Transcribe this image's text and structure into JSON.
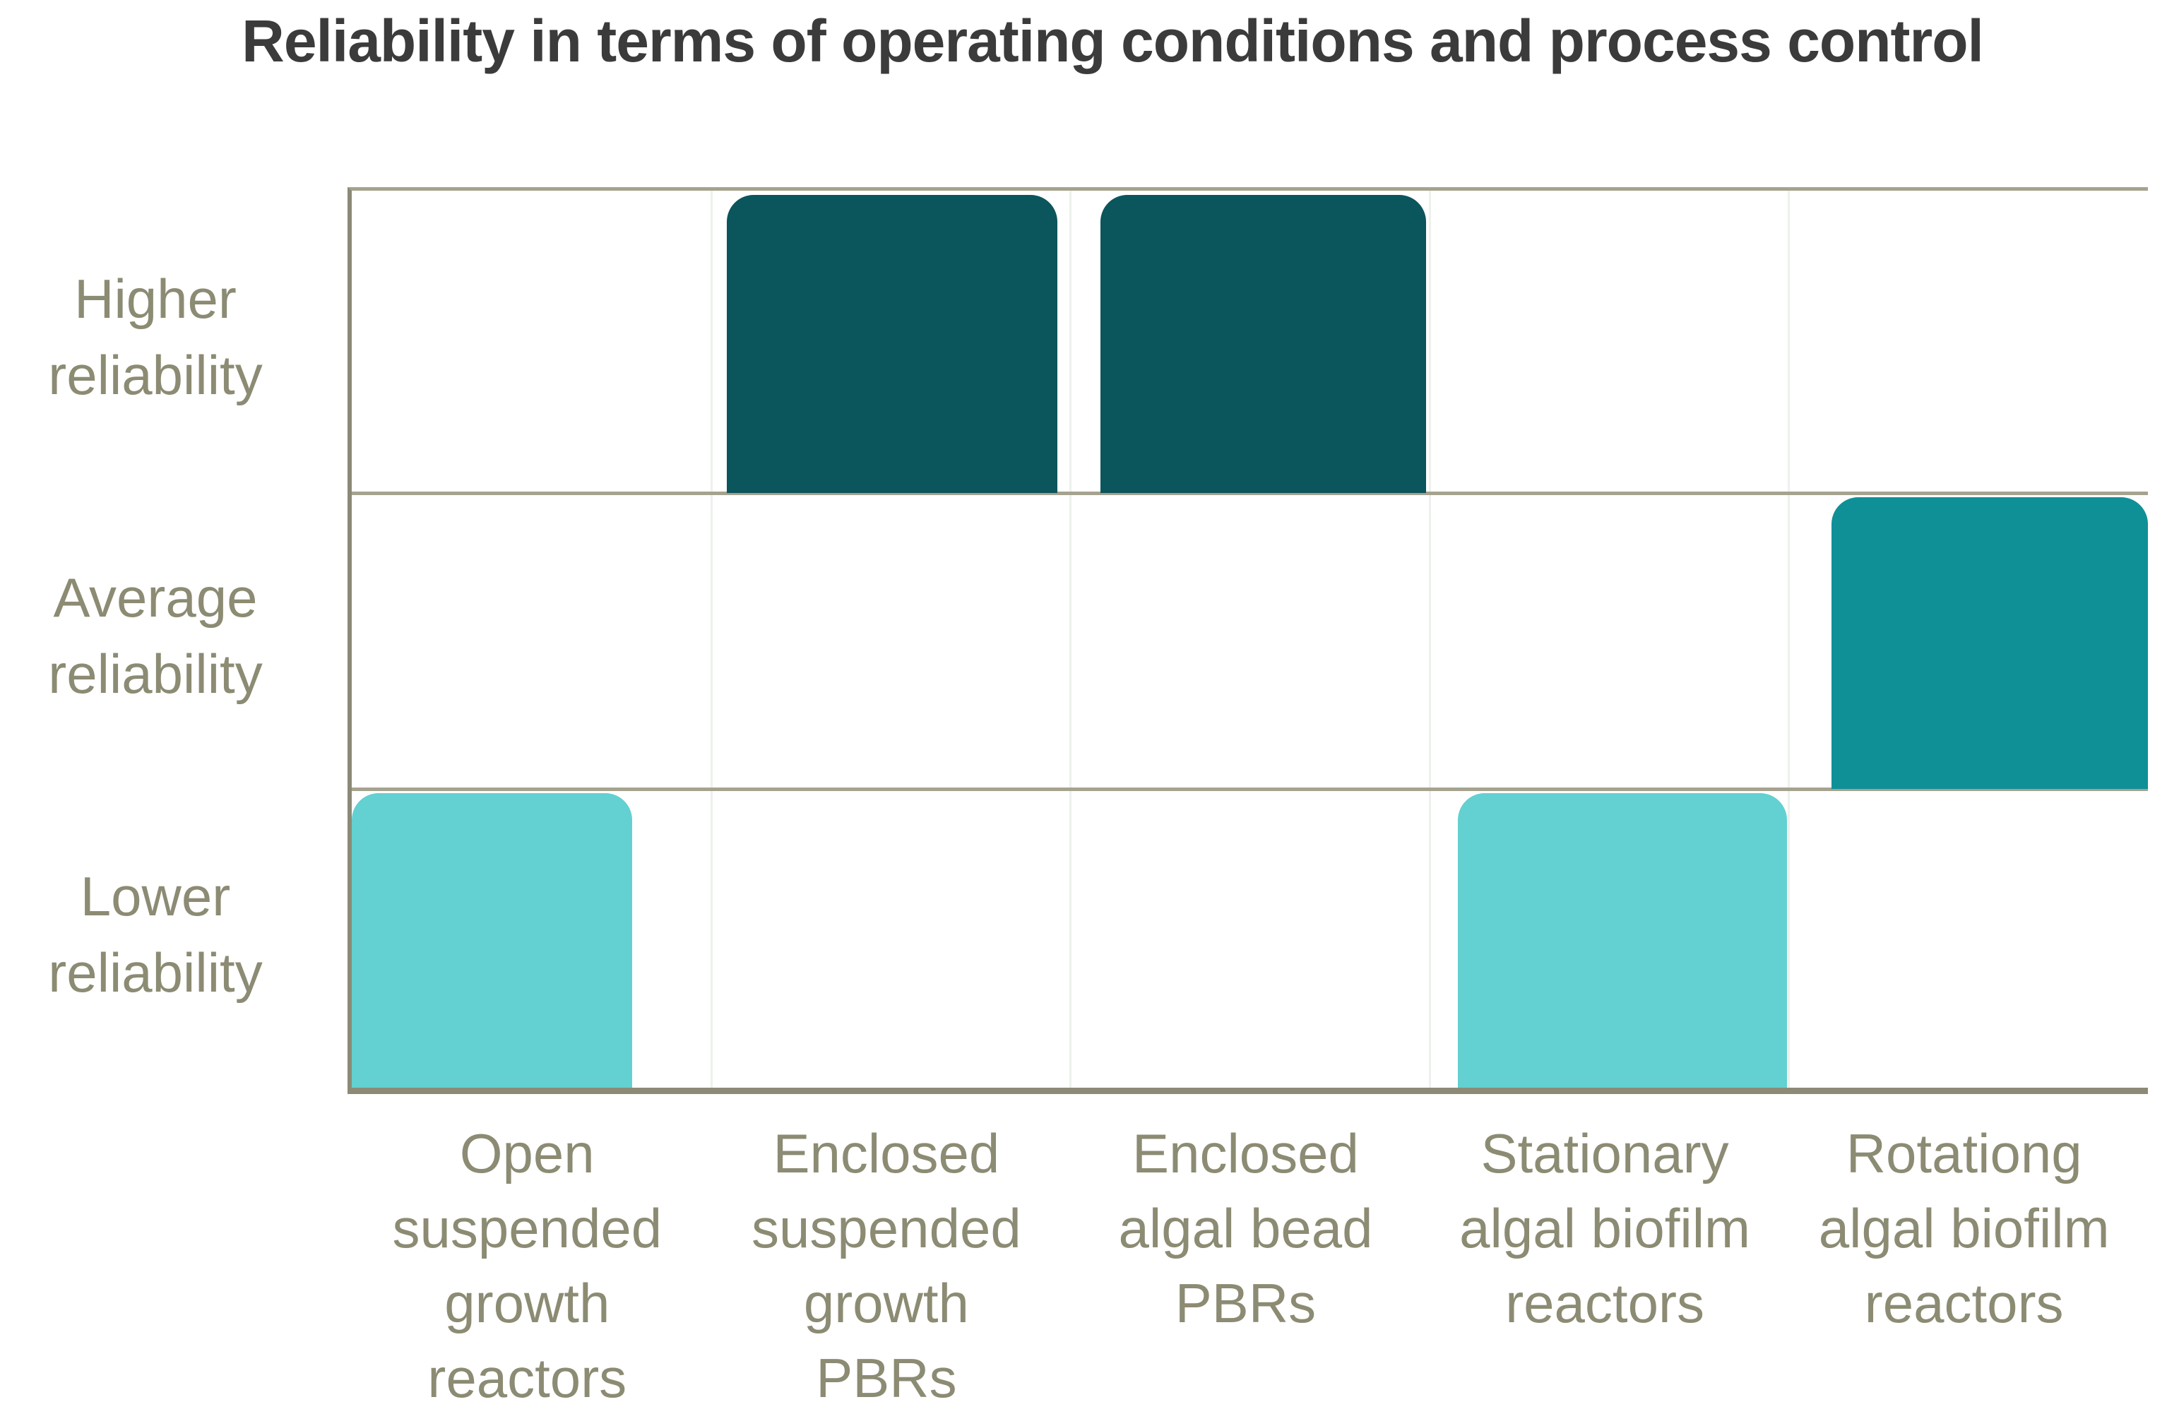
{
  "title": "Reliability in terms of operating conditions and process control",
  "colors": {
    "title_text": "#3b3b3b",
    "axis_label_text": "#8c8b73",
    "gridline": "#a5a28f",
    "axis_line": "#8c8a77",
    "column_divider": "#edf1ec",
    "higher_reliability_bar": "#0b555c",
    "average_reliability_bar": "#0f9097",
    "lower_reliability_bar": "#63d0d1"
  },
  "y_axis": {
    "labels": [
      "Higher\nreliability",
      "Average\nreliability",
      "Lower\nreliability"
    ]
  },
  "x_axis": {
    "labels": [
      "Open\nsuspended\ngrowth\nreactors",
      "Enclosed\nsuspended\ngrowth\nPBRs",
      "Enclosed\nalgal bead\nPBRs",
      "Stationary\nalgal biofilm\nreactors",
      "Rotationg\nalgal biofilm\nreactors"
    ]
  },
  "chart_data": {
    "type": "bar",
    "title": "Reliability in terms of operating conditions and process control",
    "categories": [
      "Open suspended growth reactors",
      "Enclosed suspended growth PBRs",
      "Enclosed algal bead PBRs",
      "Stationary algal biofilm reactors",
      "Rotationg algal biofilm reactors"
    ],
    "values": [
      "Lower reliability",
      "Higher reliability",
      "Higher reliability",
      "Lower reliability",
      "Average reliability"
    ],
    "numeric_values": [
      1,
      3,
      3,
      1,
      2
    ],
    "value_scale": [
      "Lower reliability",
      "Average reliability",
      "Higher reliability"
    ],
    "ylim": [
      0,
      3
    ],
    "xlabel": "",
    "ylabel": "",
    "grid": true,
    "legend": false,
    "bar_colors": [
      "#63d0d1",
      "#0b555c",
      "#0b555c",
      "#63d0d1",
      "#0f9097"
    ]
  }
}
